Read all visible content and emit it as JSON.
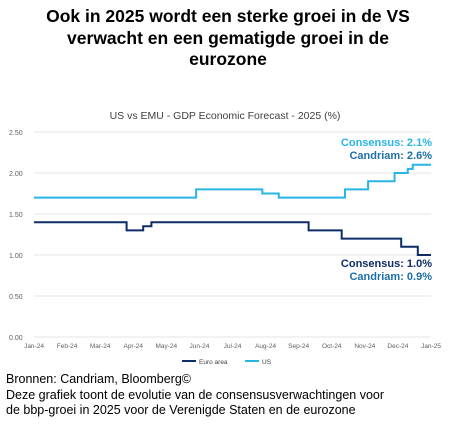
{
  "headline": {
    "line1": "Ook in 2025 wordt een sterke groei in de VS",
    "line2": "verwacht en een gematigde groei in de",
    "line3": "eurozone"
  },
  "footer": {
    "source": "Bronnen: Candriam, Bloomberg©",
    "caption1": "Deze grafiek toont de evolutie van de consensusverwachtingen voor",
    "caption2": "de bbp-groei in 2025 voor de Verenigde Staten en de eurozone"
  },
  "colors": {
    "us": "#29b4e6",
    "euro_area": "#0f2c66",
    "candriam_label": "#1f6fa8",
    "axis_text": "#606060",
    "grid": "#e4e4e4"
  },
  "chart_data": {
    "type": "line",
    "title": "US vs EMU - GDP Economic Forecast - 2025 (%)",
    "x_tick_labels": [
      "Jan-24",
      "Feb-24",
      "Mar-24",
      "Apr-24",
      "May-24",
      "Jun-24",
      "Jul-24",
      "Aug-24",
      "Sep-24",
      "Oct-24",
      "Nov-24",
      "Dec-24",
      "Jan-25"
    ],
    "x_range": [
      0,
      12
    ],
    "ylim": [
      0,
      2.5
    ],
    "y_ticks": [
      0,
      0.5,
      1.0,
      1.5,
      2.0,
      2.5
    ],
    "y_tick_labels": [
      "0.00",
      "0.50",
      "1.00",
      "1.50",
      "2.00",
      "2.50"
    ],
    "grid": "horizontal",
    "legend": {
      "position": "bottom",
      "entries": [
        "Euro area",
        "US"
      ]
    },
    "series": [
      {
        "name": "Euro area",
        "color": "#0f2c66",
        "points": [
          [
            0,
            1.4
          ],
          [
            2.8,
            1.4
          ],
          [
            2.8,
            1.3
          ],
          [
            3.3,
            1.3
          ],
          [
            3.3,
            1.35
          ],
          [
            3.55,
            1.35
          ],
          [
            3.55,
            1.4
          ],
          [
            8.3,
            1.4
          ],
          [
            8.3,
            1.3
          ],
          [
            9.3,
            1.3
          ],
          [
            9.3,
            1.2
          ],
          [
            11.1,
            1.2
          ],
          [
            11.1,
            1.1
          ],
          [
            11.6,
            1.1
          ],
          [
            11.6,
            1.0
          ],
          [
            12,
            1.0
          ]
        ]
      },
      {
        "name": "US",
        "color": "#29b4e6",
        "points": [
          [
            0,
            1.7
          ],
          [
            4.9,
            1.7
          ],
          [
            4.9,
            1.8
          ],
          [
            6.9,
            1.8
          ],
          [
            6.9,
            1.75
          ],
          [
            7.4,
            1.75
          ],
          [
            7.4,
            1.7
          ],
          [
            9.4,
            1.7
          ],
          [
            9.4,
            1.8
          ],
          [
            10.1,
            1.8
          ],
          [
            10.1,
            1.9
          ],
          [
            10.9,
            1.9
          ],
          [
            10.9,
            2.0
          ],
          [
            11.3,
            2.0
          ],
          [
            11.3,
            2.05
          ],
          [
            11.45,
            2.05
          ],
          [
            11.45,
            2.1
          ],
          [
            12,
            2.1
          ]
        ]
      }
    ],
    "annotations": [
      {
        "series": "US",
        "lines": [
          "Consensus: 2.1%",
          "Candriam: 2.6%"
        ]
      },
      {
        "series": "Euro area",
        "lines": [
          "Consensus: 1.0%",
          "Candriam: 0.9%"
        ]
      }
    ]
  }
}
